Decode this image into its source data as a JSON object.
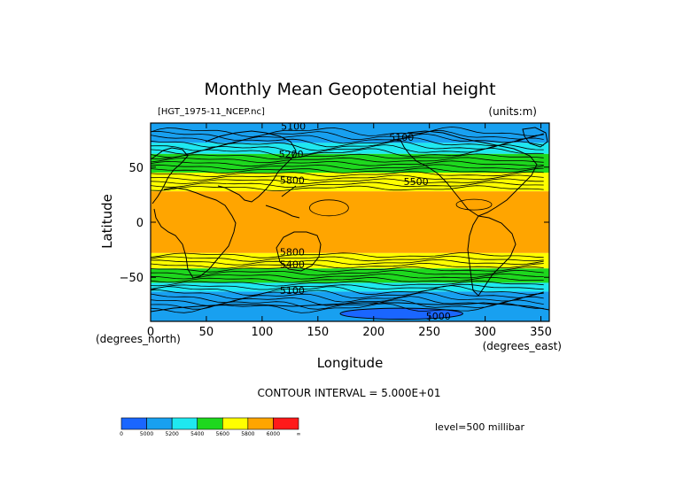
{
  "chart_data": {
    "type": "contour",
    "title": "Monthly Mean Geopotential height",
    "source_label": "[HGT_1975-11_NCEP.nc]",
    "units_label": "(units:m)",
    "xlabel": "Longitude",
    "ylabel": "Latitude",
    "x_unit_label": "(degrees_east)",
    "y_unit_label": "(degrees_north)",
    "xlim": [
      0,
      357.5
    ],
    "ylim": [
      -90,
      90
    ],
    "x_ticks": [
      0,
      50,
      100,
      150,
      200,
      250,
      300,
      350
    ],
    "y_ticks": [
      50,
      0,
      -50
    ],
    "y_tick_labels": [
      "50",
      "0",
      "−50"
    ],
    "contour_interval_text": "CONTOUR INTERVAL = 5.000E+01",
    "level_text": "level=500 millibar",
    "contour_labels": [
      {
        "text": "5100",
        "x": 128,
        "y": 87
      },
      {
        "text": "5100",
        "x": 225,
        "y": 77
      },
      {
        "text": "5200",
        "x": 126,
        "y": 62
      },
      {
        "text": "5500",
        "x": 238,
        "y": 37
      },
      {
        "text": "5800",
        "x": 127,
        "y": 38
      },
      {
        "text": "5800",
        "x": 127,
        "y": -27
      },
      {
        "text": "5400",
        "x": 127,
        "y": -38
      },
      {
        "text": "5100",
        "x": 127,
        "y": -62
      },
      {
        "text": "5000",
        "x": 258,
        "y": -85
      }
    ],
    "color_scale": {
      "bins": [
        {
          "color": "#1a66ff",
          "label": "0"
        },
        {
          "color": "#18a0f0",
          "label": "5000"
        },
        {
          "color": "#1fe8f0",
          "label": "5200"
        },
        {
          "color": "#1ed81e",
          "label": "5400"
        },
        {
          "color": "#ffff00",
          "label": "5600"
        },
        {
          "color": "#ffa500",
          "label": "5800"
        },
        {
          "color": "#ff1a1a",
          "label": "6000"
        }
      ],
      "end_label": "∞"
    },
    "bands": [
      {
        "lat_north": 90,
        "lat_south": 72,
        "value_range": "5000-5200",
        "color": "#18a0f0"
      },
      {
        "lat_north": 72,
        "lat_south": 62,
        "value_range": "5200-5400",
        "color": "#1fe8f0"
      },
      {
        "lat_north": 62,
        "lat_south": 45,
        "value_range": "5400-5600",
        "color": "#1ed81e"
      },
      {
        "lat_north": 45,
        "lat_south": 28,
        "value_range": "5600-5800",
        "color": "#ffff00"
      },
      {
        "lat_north": 28,
        "lat_south": -28,
        "value_range": "5800-6000",
        "color": "#ffa500"
      },
      {
        "lat_north": -28,
        "lat_south": -42,
        "value_range": "5600-5800",
        "color": "#ffff00"
      },
      {
        "lat_north": -42,
        "lat_south": -55,
        "value_range": "5400-5600",
        "color": "#1ed81e"
      },
      {
        "lat_north": -55,
        "lat_south": -63,
        "value_range": "5200-5400",
        "color": "#1fe8f0"
      },
      {
        "lat_north": -63,
        "lat_south": -90,
        "value_range": "5000-5200",
        "color": "#18a0f0"
      }
    ],
    "low_region": {
      "lon_center": 225,
      "lat_center": -83,
      "lon_half_width": 55,
      "lat_half_height": 5,
      "value_range": "<5000",
      "color": "#1a66ff"
    }
  }
}
